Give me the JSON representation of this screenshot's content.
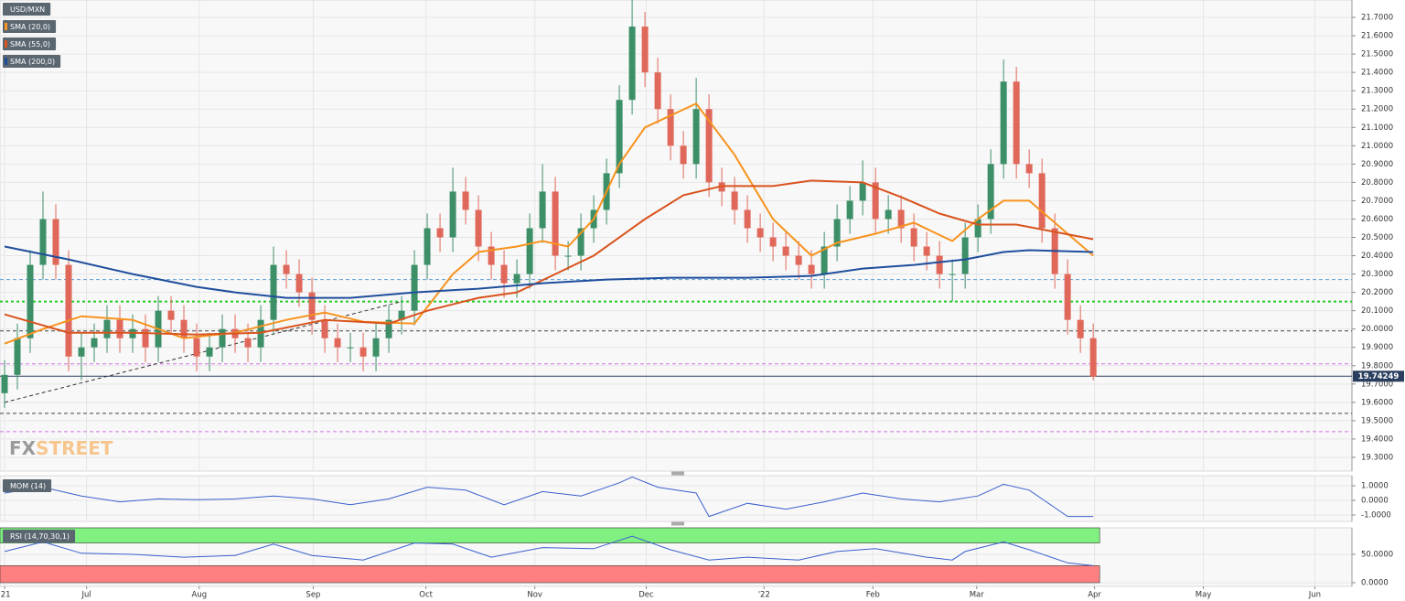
{
  "chart_data": [
    {
      "type": "candlestick",
      "title": "USD/MXN",
      "open": [
        19.65,
        19.75,
        19.95,
        20.35,
        20.6,
        20.35,
        19.85,
        19.9,
        19.95,
        20.05,
        19.95,
        20.0,
        19.9,
        20.1,
        20.05,
        19.95,
        19.85,
        19.9,
        20.0,
        19.95,
        19.9,
        20.05,
        20.35,
        20.3,
        20.2,
        20.05,
        19.95,
        19.9,
        19.9,
        19.85,
        19.95,
        20.05,
        20.1,
        20.35,
        20.55,
        20.5,
        20.75,
        20.65,
        20.45,
        20.35,
        20.25,
        20.3,
        20.55,
        20.75,
        20.4,
        20.4,
        20.55,
        20.65,
        20.85,
        21.25,
        21.65,
        21.4,
        21.2,
        21.0,
        20.9,
        21.2,
        20.8,
        20.75,
        20.65,
        20.55,
        20.5,
        20.45,
        20.4,
        20.35,
        20.3,
        20.45,
        20.6,
        20.7,
        20.8,
        20.6,
        20.65,
        20.55,
        20.45,
        20.4,
        20.3,
        20.3,
        20.5,
        20.6,
        20.9,
        21.35,
        20.9,
        20.85,
        20.55,
        20.3,
        20.05,
        19.95
      ],
      "high": [
        19.83,
        20.03,
        20.43,
        20.75,
        20.68,
        20.43,
        19.98,
        20.03,
        20.13,
        20.13,
        20.08,
        20.08,
        20.18,
        20.18,
        20.13,
        20.03,
        19.98,
        20.08,
        20.08,
        20.03,
        20.13,
        20.45,
        20.43,
        20.38,
        20.28,
        20.13,
        20.03,
        19.98,
        19.98,
        20.03,
        20.13,
        20.18,
        20.43,
        20.63,
        20.63,
        20.88,
        20.83,
        20.73,
        20.53,
        20.43,
        20.38,
        20.63,
        20.9,
        20.83,
        20.48,
        20.63,
        20.73,
        20.93,
        21.33,
        21.8,
        21.73,
        21.48,
        21.28,
        21.08,
        21.37,
        21.28,
        20.88,
        20.83,
        20.73,
        20.63,
        20.58,
        20.53,
        20.48,
        20.43,
        20.53,
        20.68,
        20.78,
        20.92,
        20.88,
        20.73,
        20.73,
        20.63,
        20.53,
        20.48,
        20.38,
        20.58,
        20.68,
        20.98,
        21.47,
        21.43,
        20.98,
        20.93,
        20.63,
        20.38,
        20.13,
        20.03
      ],
      "low": [
        19.57,
        19.67,
        19.87,
        20.27,
        20.27,
        19.77,
        19.72,
        19.82,
        19.87,
        19.87,
        19.87,
        19.82,
        19.82,
        19.97,
        19.87,
        19.77,
        19.77,
        19.82,
        19.87,
        19.82,
        19.82,
        19.97,
        20.22,
        20.12,
        19.97,
        19.87,
        19.82,
        19.82,
        19.77,
        19.77,
        19.87,
        19.97,
        20.02,
        20.27,
        20.42,
        20.42,
        20.57,
        20.37,
        20.27,
        20.17,
        20.17,
        20.22,
        20.47,
        20.32,
        20.32,
        20.32,
        20.47,
        20.57,
        20.77,
        21.17,
        21.32,
        21.12,
        20.92,
        20.82,
        20.82,
        20.72,
        20.67,
        20.57,
        20.47,
        20.42,
        20.37,
        20.32,
        20.27,
        20.22,
        20.22,
        20.37,
        20.52,
        20.62,
        20.52,
        20.52,
        20.47,
        20.37,
        20.32,
        20.22,
        20.15,
        20.22,
        20.42,
        20.52,
        20.82,
        20.82,
        20.77,
        20.47,
        20.22,
        19.97,
        19.87,
        19.72
      ],
      "close": [
        19.75,
        19.95,
        20.35,
        20.6,
        20.35,
        19.85,
        19.9,
        19.95,
        20.05,
        19.95,
        20.0,
        19.9,
        20.1,
        20.05,
        19.95,
        19.85,
        19.9,
        20.0,
        19.95,
        19.9,
        20.05,
        20.35,
        20.3,
        20.2,
        20.05,
        19.95,
        19.9,
        19.9,
        19.85,
        19.95,
        20.05,
        20.1,
        20.35,
        20.55,
        20.5,
        20.75,
        20.65,
        20.45,
        20.35,
        20.25,
        20.3,
        20.55,
        20.75,
        20.4,
        20.4,
        20.55,
        20.65,
        20.85,
        21.25,
        21.65,
        21.4,
        21.2,
        21.0,
        20.9,
        21.2,
        20.8,
        20.75,
        20.65,
        20.55,
        20.5,
        20.45,
        20.4,
        20.35,
        20.3,
        20.45,
        20.6,
        20.7,
        20.8,
        20.6,
        20.65,
        20.55,
        20.45,
        20.4,
        20.3,
        20.3,
        20.5,
        20.6,
        20.9,
        21.35,
        20.9,
        20.85,
        20.55,
        20.3,
        20.05,
        19.95,
        19.74
      ],
      "up_color": "#3d8f68",
      "down_color": "#e0685a",
      "xlim": [
        -0.357,
        105.2
      ],
      "ylim": [
        19.225,
        21.795
      ],
      "yticks": [
        {
          "value": 19.3,
          "label": "19.3000"
        },
        {
          "value": 19.4,
          "label": "19.4000"
        },
        {
          "value": 19.5,
          "label": "19.5000"
        },
        {
          "value": 19.6,
          "label": "19.6000"
        },
        {
          "value": 19.7,
          "label": "19.7000"
        },
        {
          "value": 19.8,
          "label": "19.8000"
        },
        {
          "value": 19.9,
          "label": "19.9000"
        },
        {
          "value": 20.0,
          "label": "20.0000"
        },
        {
          "value": 20.1,
          "label": "20.1000"
        },
        {
          "value": 20.2,
          "label": "20.2000"
        },
        {
          "value": 20.3,
          "label": "20.3000"
        },
        {
          "value": 20.4,
          "label": "20.4000"
        },
        {
          "value": 20.5,
          "label": "20.5000"
        },
        {
          "value": 20.6,
          "label": "20.6000"
        },
        {
          "value": 20.7,
          "label": "20.7000"
        },
        {
          "value": 20.8,
          "label": "20.8000"
        },
        {
          "value": 20.9,
          "label": "20.9000"
        },
        {
          "value": 21.0,
          "label": "21.0000"
        },
        {
          "value": 21.1,
          "label": "21.1000"
        },
        {
          "value": 21.2,
          "label": "21.2000"
        },
        {
          "value": 21.3,
          "label": "21.3000"
        },
        {
          "value": 21.4,
          "label": "21.4000"
        },
        {
          "value": 21.5,
          "label": "21.5000"
        },
        {
          "value": 21.6,
          "label": "21.6000"
        },
        {
          "value": 21.7,
          "label": "21.7000"
        }
      ],
      "series": [
        {
          "name": "SMA (20,0)",
          "color": "#f7931e",
          "x": [
            0,
            3,
            6,
            10,
            14,
            18,
            22,
            25,
            28,
            32,
            35,
            37,
            40,
            42,
            44,
            46,
            48,
            50,
            54,
            57,
            60,
            63,
            65,
            68,
            71,
            74,
            76,
            78,
            80,
            82,
            85
          ],
          "values": [
            19.92,
            20.0,
            20.07,
            20.05,
            19.95,
            19.98,
            20.05,
            20.09,
            20.04,
            20.03,
            20.3,
            20.42,
            20.45,
            20.48,
            20.45,
            20.6,
            20.9,
            21.1,
            21.23,
            20.95,
            20.6,
            20.4,
            20.47,
            20.52,
            20.58,
            20.48,
            20.6,
            20.7,
            20.7,
            20.58,
            20.4
          ]
        },
        {
          "name": "SMA (55,0)",
          "color": "#d9541e",
          "x": [
            0,
            5,
            10,
            15,
            20,
            25,
            30,
            33,
            37,
            40,
            43,
            46,
            50,
            53,
            56,
            60,
            63,
            67,
            70,
            73,
            76,
            79,
            82,
            85
          ],
          "values": [
            20.08,
            19.98,
            19.98,
            19.97,
            19.98,
            20.05,
            20.03,
            20.1,
            20.17,
            20.2,
            20.3,
            20.4,
            20.6,
            20.73,
            20.78,
            20.78,
            20.81,
            20.8,
            20.72,
            20.63,
            20.57,
            20.57,
            20.53,
            20.49
          ]
        },
        {
          "name": "SMA (200,0)",
          "color": "#1f4e9c",
          "x": [
            0,
            5,
            10,
            15,
            18,
            22,
            27,
            32,
            37,
            42,
            47,
            52,
            58,
            63,
            67,
            71,
            75,
            78,
            80,
            85
          ],
          "values": [
            20.45,
            20.38,
            20.3,
            20.23,
            20.2,
            20.17,
            20.17,
            20.2,
            20.22,
            20.25,
            20.27,
            20.28,
            20.28,
            20.29,
            20.33,
            20.35,
            20.38,
            20.42,
            20.43,
            20.42
          ]
        }
      ],
      "levels": [
        {
          "value": 20.27,
          "color": "#5b9bd5",
          "style": "dashed"
        },
        {
          "value": 20.15,
          "color": "#22cc22",
          "style": "dotted"
        },
        {
          "value": 19.99,
          "color": "#444444",
          "style": "dashed"
        },
        {
          "value": 19.81,
          "color": "#d070e0",
          "style": "dashed"
        },
        {
          "value": 19.54,
          "color": "#444444",
          "style": "dashed"
        },
        {
          "value": 19.44,
          "color": "#d070e0",
          "style": "dashed"
        }
      ],
      "trendline": {
        "x": [
          0,
          31
        ],
        "values": [
          19.6,
          20.15
        ]
      },
      "last_price": 19.74249,
      "watermark": [
        "FX",
        "STREET"
      ]
    },
    {
      "type": "line",
      "title": "MOM (14)",
      "color": "#3a5fcd",
      "x": [
        0,
        3,
        6,
        9,
        12,
        15,
        18,
        21,
        24,
        27,
        30,
        33,
        36,
        39,
        42,
        45,
        48,
        49,
        51,
        54,
        55,
        58,
        61,
        64,
        67,
        70,
        73,
        76,
        78,
        80,
        82,
        83,
        85
      ],
      "values": [
        0.5,
        0.9,
        0.3,
        -0.1,
        0.1,
        0.05,
        0.1,
        0.3,
        0.1,
        -0.3,
        0.1,
        0.9,
        0.7,
        -0.3,
        0.6,
        0.3,
        1.2,
        1.6,
        0.9,
        0.5,
        -1.1,
        -0.2,
        -0.6,
        -0.1,
        0.5,
        0.1,
        -0.1,
        0.3,
        1.1,
        0.7,
        -0.5,
        -1.1,
        -1.1
      ],
      "ylim": [
        -1.44,
        1.69
      ],
      "yticks": [
        {
          "value": -1,
          "label": "-1.0000"
        },
        {
          "value": 0,
          "label": "0.0000"
        },
        {
          "value": 1,
          "label": "1.0000"
        }
      ]
    },
    {
      "type": "line",
      "title": "RSI (14,70,30,1)",
      "color": "#3a5fcd",
      "x": [
        0,
        3,
        6,
        10,
        14,
        18,
        21,
        24,
        28,
        32,
        35,
        38,
        42,
        46,
        49,
        52,
        55,
        58,
        62,
        65,
        68,
        72,
        74,
        75,
        78,
        80,
        83,
        85
      ],
      "values": [
        55,
        72,
        52,
        50,
        45,
        48,
        68,
        48,
        40,
        70,
        68,
        45,
        62,
        60,
        82,
        58,
        40,
        45,
        40,
        55,
        60,
        45,
        40,
        55,
        72,
        58,
        35,
        30
      ],
      "ylim": [
        -6.5,
        96.8
      ],
      "yticks": [
        {
          "value": 0,
          "label": "0.0000"
        },
        {
          "value": 50,
          "label": "50.0000"
        }
      ],
      "bands": [
        {
          "from": 70,
          "to": 96.8,
          "color": "#80f080"
        },
        {
          "from": 0,
          "to": 30,
          "color": "#ff8080"
        }
      ],
      "xticks": [
        {
          "value": 0,
          "label": "'21"
        },
        {
          "value": 6.4,
          "label": "Jul"
        },
        {
          "value": 15.2,
          "label": "Aug"
        },
        {
          "value": 24.1,
          "label": "Sep"
        },
        {
          "value": 32.9,
          "label": "Oct"
        },
        {
          "value": 41.4,
          "label": "Nov"
        },
        {
          "value": 50.1,
          "label": "Dec"
        },
        {
          "value": 59.3,
          "label": "'22"
        },
        {
          "value": 67.8,
          "label": "Feb"
        },
        {
          "value": 75.9,
          "label": "Mar"
        },
        {
          "value": 85.1,
          "label": "Apr"
        },
        {
          "value": 93.6,
          "label": "May"
        },
        {
          "value": 102.3,
          "label": "Jun"
        }
      ]
    }
  ]
}
